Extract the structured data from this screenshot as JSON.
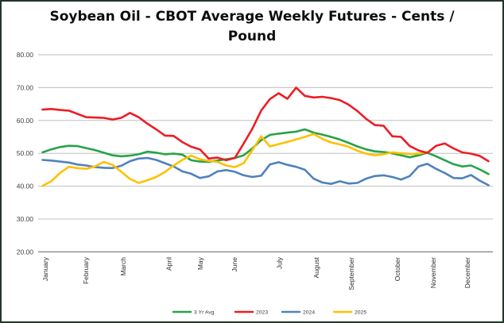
{
  "chart_data": {
    "type": "line",
    "title": "Soybean Oil - CBOT Average Weekly Futures - Cents / Pound",
    "x_unit": "week",
    "months": [
      "January",
      "February",
      "March",
      "April",
      "May",
      "June",
      "July",
      "August",
      "September",
      "October",
      "November",
      "December"
    ],
    "y_ticks": [
      {
        "label": "80.00",
        "value": 80
      },
      {
        "label": "70.00",
        "value": 70
      },
      {
        "label": "60.00",
        "value": 60
      },
      {
        "label": "50.00",
        "value": 50
      },
      {
        "label": "40.00",
        "value": 40
      },
      {
        "label": "30.00",
        "value": 30
      },
      {
        "label": "20.00",
        "value": 20
      }
    ],
    "ylim": [
      20,
      80
    ],
    "grid": true,
    "legend_position": "bottom",
    "series": [
      {
        "name": "3 Yr Avg",
        "color": "#27a348",
        "values": [
          50.3,
          51.2,
          51.9,
          52.3,
          52.2,
          51.6,
          51.0,
          50.2,
          49.4,
          49.1,
          49.3,
          49.7,
          50.5,
          50.2,
          49.7,
          49.9,
          49.6,
          47.9,
          47.5,
          47.4,
          47.8,
          48.2,
          48.6,
          49.4,
          51.5,
          54.0,
          55.6,
          56.0,
          56.3,
          56.6,
          57.3,
          56.3,
          55.7,
          55.0,
          54.2,
          53.2,
          52.1,
          51.2,
          50.6,
          50.4,
          50.0,
          49.4,
          48.8,
          49.4,
          50.2,
          49.1,
          47.9,
          46.7,
          46.0,
          46.3,
          45.1,
          43.7
        ]
      },
      {
        "name": "2023",
        "color": "#ee1c25",
        "values": [
          63.3,
          63.5,
          63.2,
          63.0,
          62.0,
          61.0,
          60.9,
          60.8,
          60.3,
          60.8,
          62.3,
          61.0,
          59.0,
          57.3,
          55.4,
          55.3,
          53.4,
          52.0,
          51.2,
          48.4,
          48.7,
          47.9,
          48.6,
          53.0,
          57.5,
          63.0,
          66.5,
          68.3,
          66.6,
          70.0,
          67.5,
          67.0,
          67.2,
          66.8,
          66.2,
          64.8,
          62.9,
          60.5,
          58.6,
          58.4,
          55.2,
          55.0,
          52.2,
          50.9,
          50.1,
          52.3,
          53.0,
          51.5,
          50.3,
          49.9,
          49.2,
          47.6
        ]
      },
      {
        "name": "2024",
        "color": "#4f81bd",
        "values": [
          48.0,
          47.8,
          47.5,
          47.2,
          46.6,
          46.3,
          45.8,
          45.6,
          45.5,
          46.2,
          47.6,
          48.4,
          48.6,
          48.0,
          47.0,
          46.0,
          44.5,
          43.8,
          42.5,
          43.0,
          44.5,
          44.9,
          44.4,
          43.3,
          42.8,
          43.2,
          46.6,
          47.3,
          46.5,
          45.9,
          45.0,
          42.3,
          41.1,
          40.7,
          41.5,
          40.8,
          41.0,
          42.3,
          43.1,
          43.3,
          42.8,
          42.0,
          43.1,
          46.0,
          46.8,
          45.3,
          44.0,
          42.5,
          42.4,
          43.4,
          41.7,
          40.3
        ]
      },
      {
        "name": "2025",
        "color": "#ffc000",
        "values": [
          40.1,
          41.5,
          44.0,
          45.9,
          45.5,
          45.3,
          46.0,
          47.4,
          46.5,
          44.4,
          42.2,
          41.0,
          41.8,
          42.8,
          44.3,
          46.3,
          48.0,
          49.3,
          48.2,
          47.7,
          47.4,
          46.3,
          45.8,
          47.0,
          51.0,
          55.2,
          52.1,
          52.8,
          53.5,
          54.2,
          55.0,
          55.9,
          54.4,
          53.3,
          52.7,
          52.0,
          50.8,
          49.9,
          49.4,
          49.7,
          50.3,
          50.0,
          49.8,
          49.9,
          50.4
        ]
      }
    ],
    "colors": {
      "grid": "#bfbfbf",
      "axis": "#7f7f7f",
      "frame": "#24342a",
      "text": "#3f3f3f",
      "title": "#0d0d0d"
    }
  }
}
